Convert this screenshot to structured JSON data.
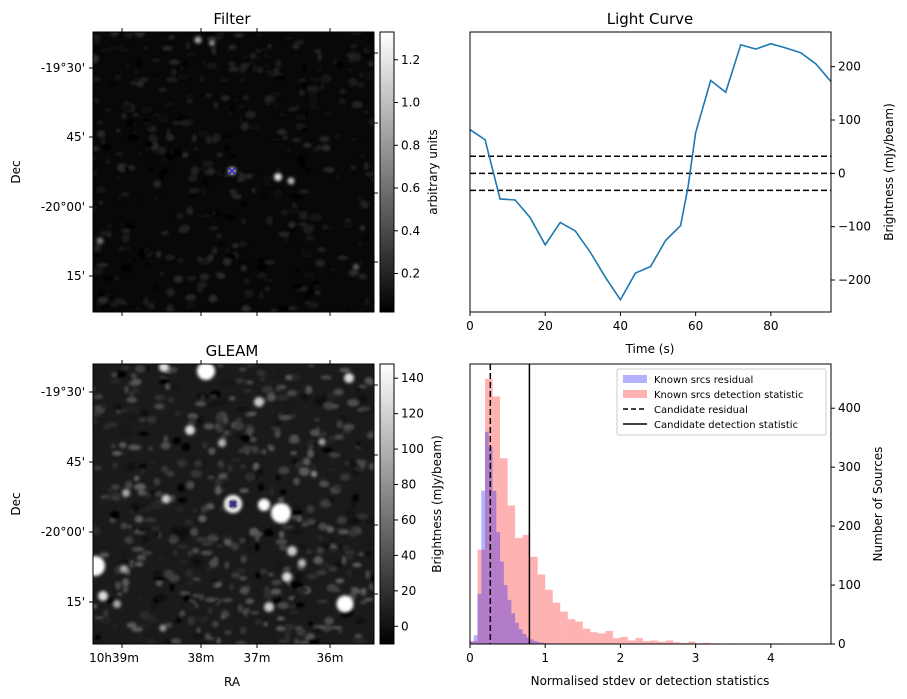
{
  "chart_data": [
    {
      "type": "heatmap",
      "title": "Filter",
      "xlabel": "",
      "ylabel": "Dec",
      "y_ticks": [
        "-19°30'",
        "45'",
        "-20°00'",
        "15'"
      ],
      "colorbar": {
        "label": "arbitrary units",
        "ticks": [
          "0.2",
          "0.4",
          "0.6",
          "0.8",
          "1.0",
          "1.2"
        ],
        "range": [
          0.02,
          1.33
        ],
        "colormap": "gray"
      },
      "marker": "x",
      "marker_color": "#2b1fd6"
    },
    {
      "type": "line",
      "title": "Light Curve",
      "xlabel": "Time (s)",
      "ylabel": "Brightness (mJy/beam)",
      "xlim": [
        0,
        96
      ],
      "ylim": [
        -260,
        265
      ],
      "x_ticks": [
        0,
        20,
        40,
        60,
        80
      ],
      "y_ticks": [
        -200,
        -100,
        0,
        100,
        200
      ],
      "series": [
        {
          "color": "#1f77b4",
          "x": [
            0,
            4,
            8,
            12,
            16,
            20,
            24,
            28,
            32,
            36,
            40,
            44,
            48,
            52,
            56,
            58,
            60,
            64,
            68,
            72,
            76,
            80,
            84,
            88,
            92,
            96
          ],
          "y": [
            82,
            63,
            -48,
            -50,
            -83,
            -134,
            -92,
            -108,
            -148,
            -195,
            -237,
            -187,
            -175,
            -126,
            -98,
            -25,
            76,
            174,
            152,
            241,
            233,
            243,
            235,
            226,
            205,
            172
          ]
        }
      ],
      "hlines": [
        {
          "y": 32,
          "style": "dashed"
        },
        {
          "y": 0,
          "style": "dashed"
        },
        {
          "y": -32,
          "style": "dashed"
        }
      ]
    },
    {
      "type": "heatmap",
      "title": "GLEAM",
      "xlabel": "RA",
      "ylabel": "Dec",
      "x_ticks": [
        "10h39m",
        "38m",
        "37m",
        "36m"
      ],
      "y_ticks": [
        "-19°30'",
        "45'",
        "-20°00'",
        "15'"
      ],
      "colorbar": {
        "label": "Brightness (mJy/beam)",
        "ticks": [
          "0",
          "20",
          "40",
          "60",
          "80",
          "100",
          "120",
          "140"
        ],
        "range": [
          -10,
          148
        ],
        "colormap": "gray"
      },
      "marker": "x",
      "marker_color": "#2b1fd6"
    },
    {
      "type": "bar",
      "title": "",
      "xlabel": "Normalised stdev or detection statistics",
      "ylabel": "Number of Sources",
      "xlim": [
        0,
        4.8
      ],
      "ylim": [
        0,
        475
      ],
      "x_ticks": [
        0,
        1,
        2,
        3,
        4
      ],
      "y_ticks": [
        0,
        100,
        200,
        300,
        400
      ],
      "legend_position": "top-right",
      "series": [
        {
          "name": "Known srcs residual",
          "color": "#0000ff",
          "opacity": 0.3,
          "bin_start": 0.0,
          "bin_width": 0.05,
          "values": [
            4,
            15,
            85,
            260,
            360,
            335,
            260,
            190,
            140,
            100,
            75,
            52,
            36,
            25,
            17,
            11,
            8,
            5,
            3,
            2,
            1,
            1
          ]
        },
        {
          "name": "Known srcs detection statistic",
          "color": "#ff0000",
          "opacity": 0.3,
          "bin_start": 0.0,
          "bin_width": 0.1,
          "values": [
            5,
            160,
            450,
            420,
            315,
            235,
            180,
            185,
            148,
            118,
            92,
            70,
            55,
            42,
            38,
            26,
            20,
            18,
            22,
            10,
            12,
            6,
            10,
            5,
            6,
            4,
            6,
            3,
            2,
            4,
            1,
            2,
            1,
            0,
            1,
            0,
            0,
            0,
            0,
            0,
            0,
            1
          ]
        }
      ],
      "vlines": [
        {
          "name": "Candidate residual",
          "x": 0.27,
          "style": "dashed"
        },
        {
          "name": "Candidate detection statistic",
          "x": 0.79,
          "style": "solid"
        }
      ]
    }
  ]
}
